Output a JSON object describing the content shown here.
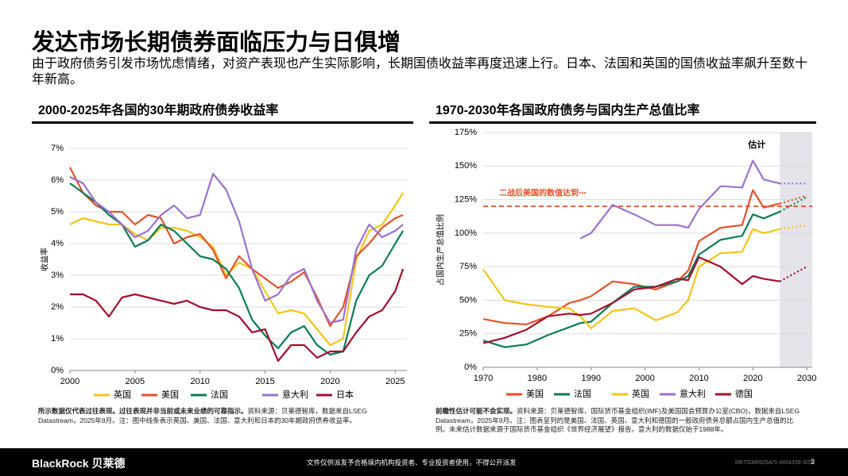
{
  "header": {
    "title": "发达市场长期债券面临压力与日俱增",
    "subtitle": "由于政府债务引发市场忧虑情绪，对资产表现也产生实际影响，长期国债收益率再度迅速上行。日本、法国和英国的国债收益率飙升至数十年新高。"
  },
  "chart_data": [
    {
      "type": "line",
      "title": "2000-2025年各国的30年期政府债券收益率",
      "y_label": "收益率",
      "x": [
        2000,
        2001,
        2002,
        2003,
        2004,
        2005,
        2006,
        2007,
        2008,
        2009,
        2010,
        2011,
        2012,
        2013,
        2014,
        2015,
        2016,
        2017,
        2018,
        2019,
        2020,
        2021,
        2022,
        2023,
        2024,
        2025,
        2025.6
      ],
      "xlim": [
        2000,
        2025.9
      ],
      "xticks": [
        2000,
        2005,
        2010,
        2015,
        2020,
        2025
      ],
      "ylim": [
        0,
        7
      ],
      "yticks": [
        {
          "value": 0,
          "label": "0%"
        },
        {
          "value": 1,
          "label": "1%"
        },
        {
          "value": 2,
          "label": "2%"
        },
        {
          "value": 3,
          "label": "3%"
        },
        {
          "value": 4,
          "label": "4%"
        },
        {
          "value": 5,
          "label": "5%"
        },
        {
          "value": 6,
          "label": "6%"
        },
        {
          "value": 7,
          "label": "7%"
        }
      ],
      "grid": true,
      "legend": "bottom",
      "series": [
        {
          "name": "英国",
          "color": "#f5c518",
          "values": [
            4.6,
            4.8,
            4.7,
            4.6,
            4.6,
            4.3,
            4.1,
            4.5,
            4.5,
            4.4,
            4.2,
            3.9,
            3.0,
            3.4,
            3.2,
            2.5,
            1.8,
            1.9,
            1.8,
            1.3,
            0.8,
            1.0,
            3.5,
            4.4,
            4.6,
            5.2,
            5.6
          ]
        },
        {
          "name": "美国",
          "color": "#e8502a",
          "values": [
            6.4,
            5.6,
            5.2,
            5.0,
            5.0,
            4.6,
            4.9,
            4.8,
            4.0,
            4.2,
            4.3,
            3.8,
            2.9,
            3.6,
            3.2,
            2.9,
            2.6,
            2.8,
            3.1,
            2.3,
            1.4,
            2.0,
            3.6,
            4.0,
            4.5,
            4.8,
            4.9
          ]
        },
        {
          "name": "法国",
          "color": "#0a7d55",
          "values": [
            5.9,
            5.6,
            5.3,
            4.9,
            4.6,
            3.9,
            4.1,
            4.6,
            4.4,
            4.0,
            3.6,
            3.5,
            3.2,
            2.6,
            1.6,
            1.1,
            0.7,
            1.2,
            1.4,
            0.8,
            0.5,
            0.6,
            2.2,
            3.0,
            3.3,
            4.0,
            4.4
          ]
        },
        {
          "name": "意大利",
          "color": "#9b72cf",
          "values": [
            6.1,
            5.9,
            5.3,
            5.0,
            4.6,
            4.2,
            4.4,
            4.9,
            5.2,
            4.8,
            4.9,
            6.2,
            5.7,
            4.7,
            3.2,
            2.2,
            2.4,
            3.0,
            3.2,
            2.2,
            1.5,
            1.6,
            3.8,
            4.6,
            4.2,
            4.4,
            4.6
          ]
        },
        {
          "name": "日本",
          "color": "#a50f2d",
          "values": [
            2.4,
            2.4,
            2.2,
            1.7,
            2.3,
            2.4,
            2.3,
            2.2,
            2.1,
            2.2,
            2.0,
            1.9,
            1.9,
            1.7,
            1.2,
            1.3,
            0.3,
            0.8,
            0.8,
            0.4,
            0.6,
            0.6,
            1.2,
            1.7,
            1.9,
            2.5,
            3.2
          ]
        }
      ]
    },
    {
      "type": "line",
      "title": "1970-2030年各国政府债务与国内生产总值比率",
      "y_label": "占国内生产总值比例",
      "x": [
        1970,
        1974,
        1978,
        1982,
        1986,
        1988,
        1990,
        1994,
        1998,
        2002,
        2006,
        2008,
        2010,
        2014,
        2018,
        2020,
        2022,
        2025,
        2030
      ],
      "xlim": [
        1970,
        2031
      ],
      "xticks": [
        1970,
        1980,
        1990,
        2000,
        2010,
        2020,
        2030
      ],
      "ylim": [
        0,
        175
      ],
      "yticks": [
        {
          "value": 0,
          "label": "0%"
        },
        {
          "value": 25,
          "label": "25%"
        },
        {
          "value": 50,
          "label": "50%"
        },
        {
          "value": 75,
          "label": "75%"
        },
        {
          "value": 100,
          "label": "100%"
        },
        {
          "value": 125,
          "label": "125%"
        },
        {
          "value": 150,
          "label": "150%"
        },
        {
          "value": 175,
          "label": "175%"
        }
      ],
      "grid": true,
      "legend": "bottom",
      "shade": {
        "from": 2025,
        "label": "估计"
      },
      "reference_line": {
        "value": 120,
        "label": "二战后美国的数值达到⋯",
        "color": "#e8502a"
      },
      "series": [
        {
          "name": "美国",
          "color": "#e8502a",
          "values": [
            36,
            33,
            32,
            38,
            48,
            50,
            53,
            64,
            62,
            58,
            64,
            72,
            94,
            104,
            106,
            132,
            119,
            122,
            128
          ]
        },
        {
          "name": "法国",
          "color": "#0a7d55",
          "values": [
            20,
            15,
            17,
            24,
            30,
            33,
            34,
            48,
            60,
            60,
            64,
            68,
            84,
            95,
            98,
            114,
            111,
            116,
            127
          ]
        },
        {
          "name": "英国",
          "color": "#f5c518",
          "values": [
            73,
            50,
            47,
            45,
            44,
            38,
            29,
            42,
            44,
            35,
            41,
            50,
            75,
            85,
            86,
            103,
            100,
            103,
            106
          ]
        },
        {
          "name": "意大利",
          "color": "#9b72cf",
          "values": [
            null,
            null,
            null,
            null,
            null,
            96,
            100,
            121,
            114,
            106,
            106,
            104,
            118,
            135,
            134,
            154,
            140,
            137,
            137
          ]
        },
        {
          "name": "德国",
          "color": "#a50f2d",
          "values": [
            18,
            22,
            28,
            38,
            40,
            39,
            40,
            48,
            58,
            60,
            66,
            65,
            82,
            75,
            62,
            68,
            66,
            64,
            75
          ]
        }
      ]
    }
  ],
  "notes": [
    {
      "bold": "所示数据仅代表过往表现。过往表现并非当前或未来业绩的可靠指示。",
      "text": "资料来源：贝莱德智库，数据来自LSEG Datastream，2025年9月。注：图中线条表示英国、美国、法国、意大利和日本的30年期政府债券收益率。"
    },
    {
      "bold": "前瞻性估计可能不会实现。",
      "text": "资料来源：贝莱德智库、国际货币基金组织(IMF)及美国国会预算办公室(CBO)，数据来自LSEG Datastream，2025年9月。注：图表呈列的是美国、法国、英国、意大利和德国的一般政府债务总额占国内生产总值的比例。未来估计数据来源于国际货币基金组织《世界经济展望》报告。意大利的数据仅始于1988年。"
    }
  ],
  "footer": {
    "brand": "BlackRock 贝莱德",
    "disclaimer": "文件仅供派发予合格境内机构投资者、专业投资者使用，不得公开派发",
    "code": "MKTGM0925A/S-4854339-3/25",
    "page": "3"
  }
}
